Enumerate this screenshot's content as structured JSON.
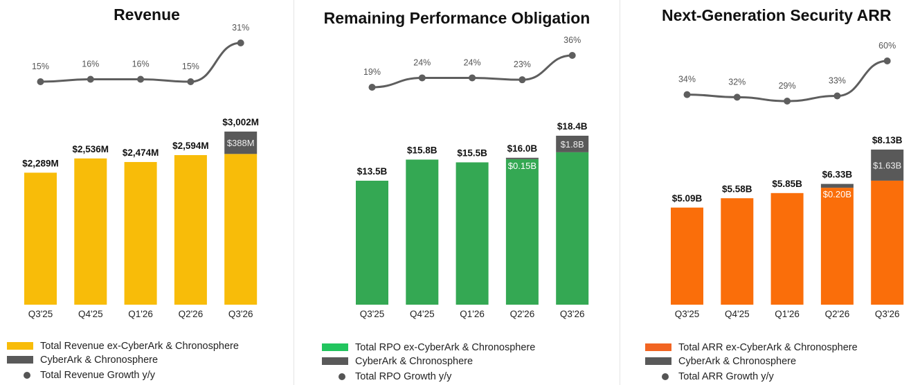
{
  "charts": [
    {
      "title": "Revenue",
      "bar_color": "#f8bc09",
      "growth_offset": 0,
      "legend": [
        "Total Revenue ex-CyberArk & Chronosphere",
        "CyberArk & Chronosphere",
        "Total Revenue Growth y/y"
      ]
    },
    {
      "title": "Remaining Performance Obligation",
      "bar_color": "#34a853",
      "growth_offset": 0,
      "legend": [
        "Total RPO ex-CyberArk & Chronosphere",
        "CyberArk & Chronosphere",
        "Total RPO Growth y/y"
      ]
    },
    {
      "title": "Next-Generation Security ARR",
      "bar_color": "#fa6e0a",
      "growth_offset": 0,
      "legend": [
        "Total ARR ex-CyberArk & Chronosphere",
        "CyberArk & Chronosphere",
        "Total ARR Growth y/y"
      ]
    }
  ],
  "colors": {
    "acquired": "#595959",
    "growth_line": "#5e5e5e"
  },
  "chart_data": [
    {
      "type": "bar",
      "title": "Revenue",
      "categories": [
        "Q3'25",
        "Q4'25",
        "Q1'26",
        "Q2'26",
        "Q3'26"
      ],
      "series": [
        {
          "name": "Total Revenue ex-CyberArk & Chronosphere",
          "values": [
            2289,
            2536,
            2474,
            2594,
            2614
          ]
        },
        {
          "name": "CyberArk & Chronosphere",
          "values": [
            0,
            0,
            0,
            0,
            388
          ],
          "labels": [
            "",
            "",
            "",
            "",
            "$388M"
          ]
        }
      ],
      "total_labels": [
        "$2,289M",
        "$2,536M",
        "$2,474M",
        "$2,594M",
        "$3,002M"
      ],
      "growth": {
        "name": "Total Revenue Growth y/y",
        "values": [
          15,
          16,
          16,
          15,
          31
        ],
        "labels": [
          "15%",
          "16%",
          "16%",
          "15%",
          "31%"
        ]
      }
    },
    {
      "type": "bar",
      "title": "Remaining Performance Obligation",
      "categories": [
        "Q3'25",
        "Q4'25",
        "Q1'26",
        "Q2'26",
        "Q3'26"
      ],
      "series": [
        {
          "name": "Total RPO ex-CyberArk & Chronosphere",
          "values": [
            13.5,
            15.8,
            15.5,
            15.85,
            16.6
          ]
        },
        {
          "name": "CyberArk & Chronosphere",
          "values": [
            0,
            0,
            0,
            0.15,
            1.8
          ],
          "labels": [
            "",
            "",
            "",
            "$0.15B",
            "$1.8B"
          ]
        }
      ],
      "total_labels": [
        "$13.5B",
        "$15.8B",
        "$15.5B",
        "$16.0B",
        "$18.4B"
      ],
      "growth": {
        "name": "Total RPO Growth y/y",
        "values": [
          19,
          24,
          24,
          23,
          36
        ],
        "labels": [
          "19%",
          "24%",
          "24%",
          "23%",
          "36%"
        ]
      }
    },
    {
      "type": "bar",
      "title": "Next-Generation Security ARR",
      "categories": [
        "Q3'25",
        "Q4'25",
        "Q1'26",
        "Q2'26",
        "Q3'26"
      ],
      "series": [
        {
          "name": "Total ARR ex-CyberArk & Chronosphere",
          "values": [
            5.09,
            5.58,
            5.85,
            6.13,
            6.5
          ]
        },
        {
          "name": "CyberArk & Chronosphere",
          "values": [
            0,
            0,
            0,
            0.2,
            1.63
          ],
          "labels": [
            "",
            "",
            "",
            "$0.20B",
            "$1.63B"
          ]
        }
      ],
      "total_labels": [
        "$5.09B",
        "$5.58B",
        "$5.85B",
        "$6.33B",
        "$8.13B"
      ],
      "growth": {
        "name": "Total ARR Growth y/y",
        "values": [
          34,
          32,
          29,
          33,
          60
        ],
        "labels": [
          "34%",
          "32%",
          "29%",
          "33%",
          "60%"
        ]
      }
    }
  ]
}
